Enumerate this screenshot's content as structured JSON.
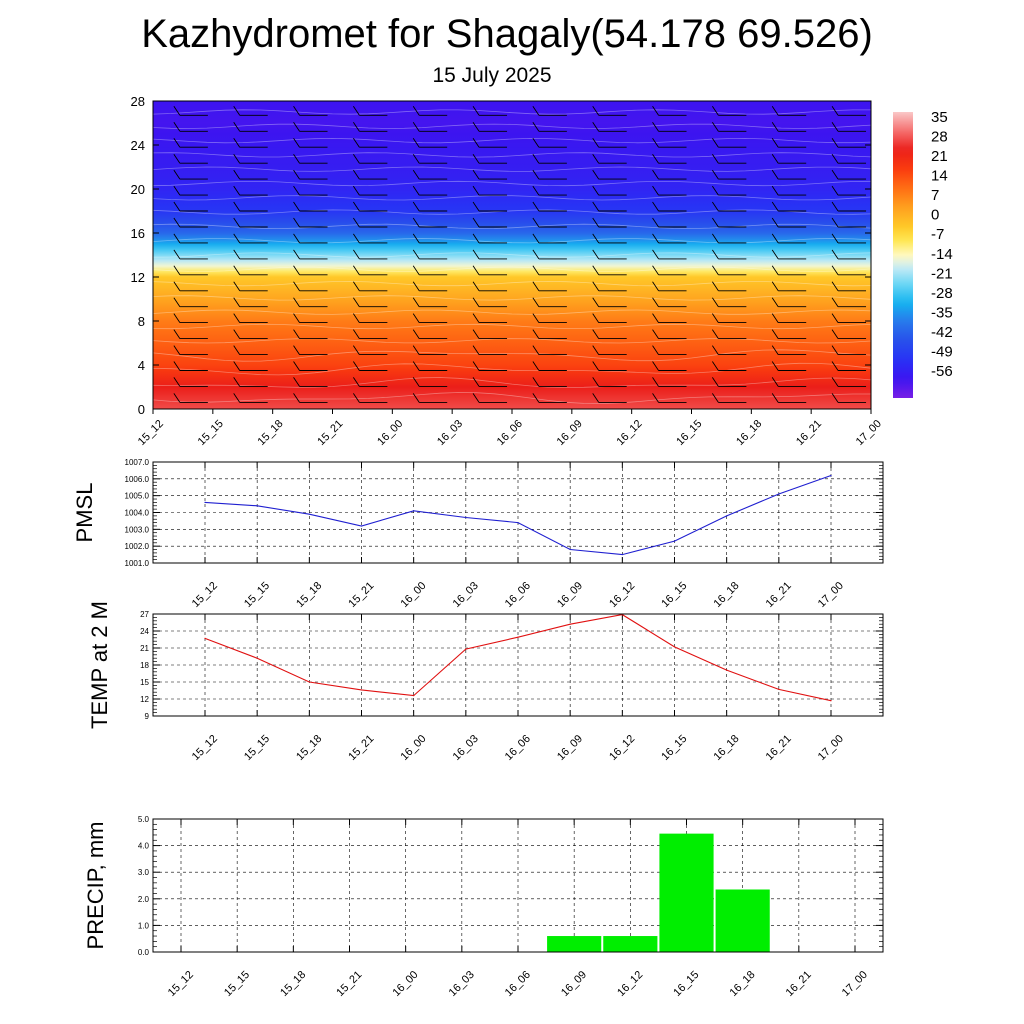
{
  "header": {
    "title": "Kazhydromet for Shagaly(54.178 69.526)",
    "subtitle": "15 July 2025"
  },
  "chart_data": [
    {
      "type": "heatmap",
      "title": "Kazhydromet for Shagaly(54.178 69.526)",
      "subtitle": "15 July 2025",
      "x_ticks": [
        "15_12",
        "15_15",
        "15_18",
        "15_21",
        "16_00",
        "16_03",
        "16_06",
        "16_09",
        "16_12",
        "16_15",
        "16_18",
        "16_21",
        "17_00"
      ],
      "y_ticks": [
        0,
        4,
        8,
        12,
        16,
        20,
        24,
        28
      ],
      "ylim": [
        0,
        28
      ],
      "colorbar_labels": [
        "35",
        "28",
        "21",
        "14",
        "7",
        "0",
        "-7",
        "-14",
        "-21",
        "-28",
        "-35",
        "-42",
        "-49",
        "-56"
      ],
      "colorbar_range": [
        -63,
        42
      ],
      "temperature_profile": {
        "levels": [
          0,
          2,
          4,
          6,
          8,
          10,
          12,
          13,
          14,
          16,
          18,
          20,
          22,
          24,
          26,
          28
        ],
        "values": [
          32,
          28,
          20,
          16,
          12,
          6,
          0,
          -12,
          -20,
          -38,
          -48,
          -52,
          -54,
          -55,
          -57,
          -56
        ]
      },
      "description_note": "",
      "has_wind_barbs": true
    },
    {
      "type": "line",
      "ylabel": "PMSL",
      "x": [
        "15_12",
        "15_15",
        "15_18",
        "15_21",
        "16_00",
        "16_03",
        "16_06",
        "16_09",
        "16_12",
        "16_15",
        "16_18",
        "16_21",
        "17_00"
      ],
      "values": [
        1004.6,
        1004.4,
        1003.9,
        1003.2,
        1004.1,
        1003.7,
        1003.4,
        1001.8,
        1001.5,
        1002.3,
        1003.8,
        1005.1,
        1006.2
      ],
      "y_ticks": [
        "1001.0",
        "1002.0",
        "1003.0",
        "1004.0",
        "1005.0",
        "1006.0",
        "1007.0"
      ],
      "ylim": [
        1001,
        1007
      ],
      "color": "#1f1fd0",
      "grid": true
    },
    {
      "type": "line",
      "ylabel": "TEMP at 2 M",
      "x": [
        "15_12",
        "15_15",
        "15_18",
        "15_21",
        "16_00",
        "16_03",
        "16_06",
        "16_09",
        "16_12",
        "16_15",
        "16_18",
        "16_21",
        "17_00"
      ],
      "values": [
        22.7,
        19.2,
        15.0,
        13.6,
        12.6,
        20.8,
        22.9,
        25.2,
        26.9,
        21.2,
        17.1,
        13.7,
        11.7
      ],
      "y_ticks": [
        "9",
        "12",
        "15",
        "18",
        "21",
        "24",
        "27"
      ],
      "ylim": [
        9,
        27
      ],
      "color": "#e01010",
      "grid": true
    },
    {
      "type": "bar",
      "ylabel": "PRECIP, mm",
      "categories": [
        "15_12",
        "15_15",
        "15_18",
        "15_21",
        "16_00",
        "16_03",
        "16_06",
        "16_09",
        "16_12",
        "16_15",
        "16_18",
        "16_21",
        "17_00"
      ],
      "values": [
        0,
        0,
        0,
        0,
        0,
        0,
        0,
        0.6,
        0.6,
        4.45,
        2.35,
        0,
        0
      ],
      "y_ticks": [
        "0.0",
        "1.0",
        "2.0",
        "3.0",
        "4.0",
        "5.0"
      ],
      "ylim": [
        0,
        5
      ],
      "color": "#00ee00",
      "grid": true
    }
  ]
}
